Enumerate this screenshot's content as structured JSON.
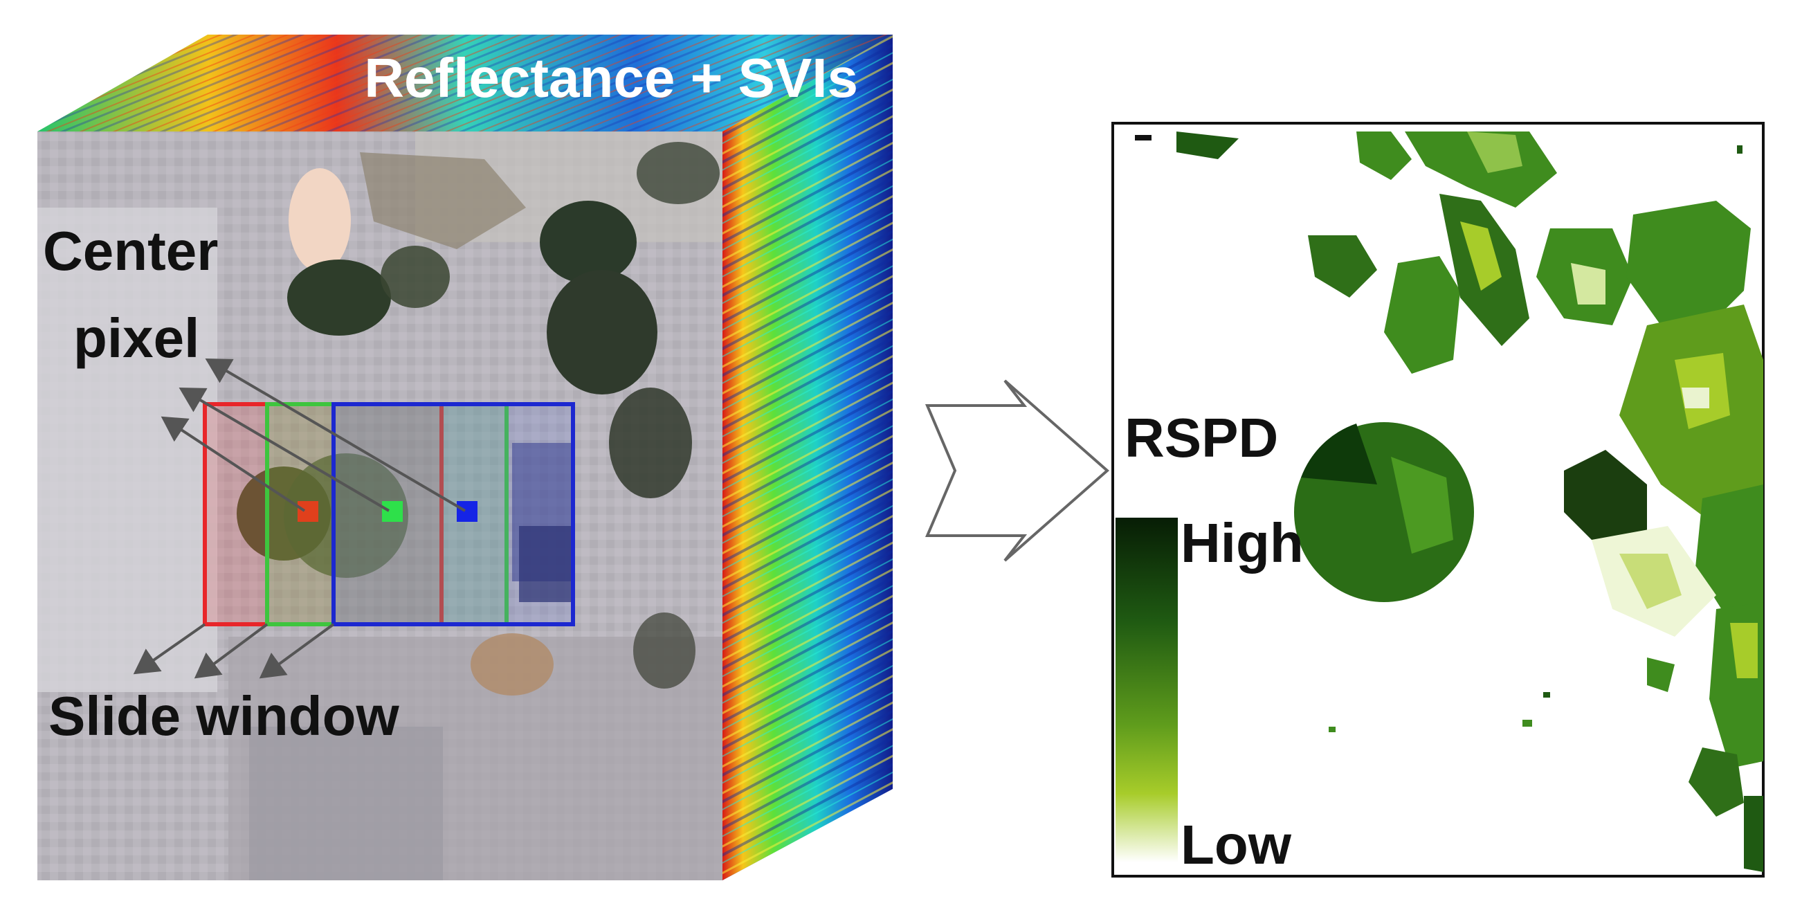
{
  "cube": {
    "top_label": "Reflectance + SVIs",
    "center_label_line1": "Center",
    "center_label_line2": "pixel",
    "window_label": "Slide window"
  },
  "map": {
    "title": "RSPD",
    "legend_high": "High",
    "legend_low": "Low"
  },
  "colors": {
    "red_window": "#e8262a",
    "green_window": "#3ec53e",
    "blue_window": "#1c28d0",
    "vegetation_dark": "#0e3a0a",
    "vegetation_mid": "#3f8c1e",
    "vegetation_light": "#8fc24a"
  }
}
